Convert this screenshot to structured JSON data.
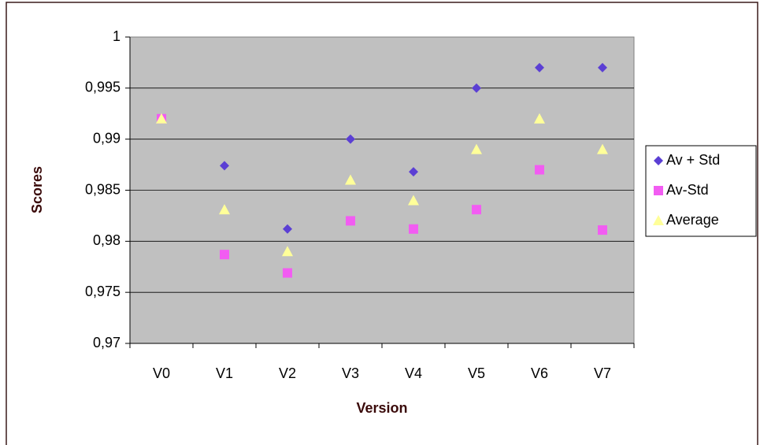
{
  "chart_data": {
    "type": "scatter",
    "x_label": "Version",
    "y_label": "Scores",
    "categories": [
      "V0",
      "V1",
      "V2",
      "V3",
      "V4",
      "V5",
      "V6",
      "V7"
    ],
    "series": [
      {
        "name": "Av + Std",
        "color": "#5b3fd4",
        "marker": "diamond",
        "values": [
          0.992,
          0.9874,
          0.9812,
          0.99,
          0.9868,
          0.995,
          0.997,
          0.997
        ]
      },
      {
        "name": "Av-Std",
        "color": "#f25cf2",
        "marker": "square",
        "values": [
          0.992,
          0.9787,
          0.9769,
          0.982,
          0.9812,
          0.9831,
          0.987,
          0.9811
        ]
      },
      {
        "name": "Average",
        "color": "#ffff99",
        "marker": "triangle",
        "values": [
          0.992,
          0.9831,
          0.979,
          0.986,
          0.984,
          0.989,
          0.992,
          0.989
        ]
      }
    ],
    "ylim": [
      0.97,
      1
    ],
    "yticks": [
      {
        "value": 0.97,
        "label": "0,97"
      },
      {
        "value": 0.975,
        "label": "0,975"
      },
      {
        "value": 0.98,
        "label": "0,98"
      },
      {
        "value": 0.985,
        "label": "0,985"
      },
      {
        "value": 0.99,
        "label": "0,99"
      },
      {
        "value": 0.995,
        "label": "0,995"
      },
      1
    ],
    "grid": true,
    "legend": "right",
    "plot_background": "#c0c0c0"
  }
}
